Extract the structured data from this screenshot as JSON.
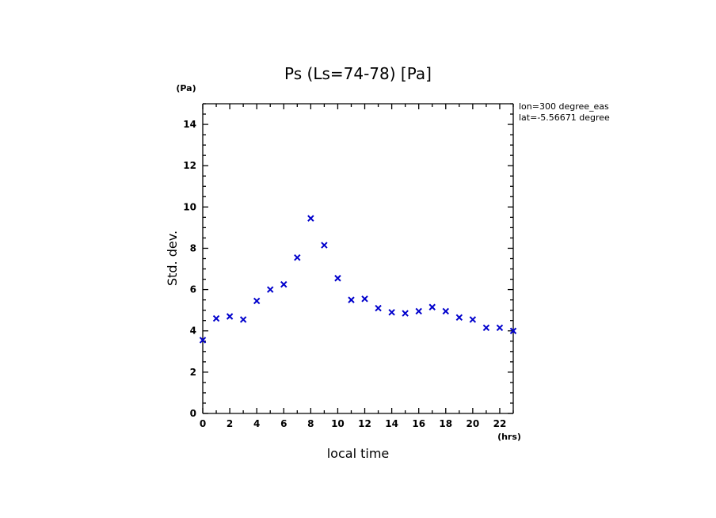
{
  "chart_data": {
    "type": "scatter",
    "title": "Ps (Ls=74-78) [Pa]",
    "xlabel": "local time",
    "ylabel": "Std. dev.",
    "x_unit": "(hrs)",
    "y_unit": "(Pa)",
    "xlim": [
      0,
      23
    ],
    "ylim": [
      0,
      15
    ],
    "x_major_ticks": [
      0,
      2,
      4,
      6,
      8,
      10,
      12,
      14,
      16,
      18,
      20,
      22
    ],
    "y_major_ticks": [
      0,
      2,
      4,
      6,
      8,
      10,
      12,
      14
    ],
    "grid": false,
    "marker": "x",
    "marker_color": "#0000cc",
    "annotations": [
      "lon=300 degree_eas",
      "lat=-5.56671 degree"
    ],
    "x": [
      0,
      1,
      2,
      3,
      4,
      5,
      6,
      7,
      8,
      9,
      10,
      11,
      12,
      13,
      14,
      15,
      16,
      17,
      18,
      19,
      20,
      21,
      22,
      23
    ],
    "y": [
      3.55,
      4.6,
      4.7,
      4.55,
      5.45,
      6.0,
      6.25,
      7.55,
      9.45,
      8.15,
      6.55,
      5.5,
      5.55,
      5.1,
      4.9,
      4.85,
      4.95,
      5.15,
      4.95,
      4.65,
      4.55,
      4.15,
      4.15,
      4.0
    ]
  }
}
